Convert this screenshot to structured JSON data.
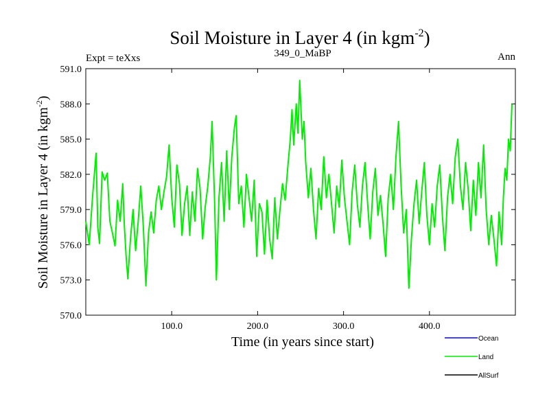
{
  "chart_data": {
    "type": "line",
    "title_main": "Soil Moisture in Layer 4 (in kgm",
    "title_sup": "-2",
    "title_end": ")",
    "subtitle_left": "Expt = teXxs",
    "subtitle_center": "349_0_MaBP",
    "subtitle_right": "Ann",
    "xlabel": "Time (in years since start)",
    "ylabel_main": "Soil Moisture in Layer 4 (in kgm",
    "ylabel_sup": "-2",
    "ylabel_end": ")",
    "xlim": [
      0,
      500
    ],
    "ylim": [
      570,
      591
    ],
    "x_ticks": [
      100,
      200,
      300,
      400
    ],
    "x_tick_labels": [
      "100.0",
      "200.0",
      "300.0",
      "400.0"
    ],
    "y_ticks": [
      570,
      573,
      576,
      579,
      582,
      585,
      588,
      591
    ],
    "y_tick_labels": [
      "570.0",
      "573.0",
      "576.0",
      "579.0",
      "582.0",
      "585.0",
      "588.0",
      "591.0"
    ],
    "legend": [
      {
        "name": "Ocean",
        "color": "#0000ff"
      },
      {
        "name": "Land",
        "color": "#00ee00"
      },
      {
        "name": "AllSurf",
        "color": "#000000"
      }
    ],
    "series": [
      {
        "name": "Land",
        "color": "#00ee00",
        "points": [
          [
            0,
            578.0
          ],
          [
            4,
            576.0
          ],
          [
            8,
            580.2
          ],
          [
            12,
            583.8
          ],
          [
            14,
            577.5
          ],
          [
            16,
            576.1
          ],
          [
            19,
            582.2
          ],
          [
            22,
            581.5
          ],
          [
            25,
            582.1
          ],
          [
            28,
            578.0
          ],
          [
            31,
            577.0
          ],
          [
            34,
            575.9
          ],
          [
            37,
            579.8
          ],
          [
            40,
            578.0
          ],
          [
            43,
            581.2
          ],
          [
            45,
            577.5
          ],
          [
            47,
            575.0
          ],
          [
            49,
            573.1
          ],
          [
            52,
            576.5
          ],
          [
            55,
            579.0
          ],
          [
            58,
            575.5
          ],
          [
            61,
            578.0
          ],
          [
            64,
            581.0
          ],
          [
            67,
            577.5
          ],
          [
            70,
            572.5
          ],
          [
            73,
            577.0
          ],
          [
            76,
            578.8
          ],
          [
            79,
            577.0
          ],
          [
            82,
            579.8
          ],
          [
            85,
            581.0
          ],
          [
            88,
            579.0
          ],
          [
            91,
            580.5
          ],
          [
            94,
            581.8
          ],
          [
            97,
            584.5
          ],
          [
            100,
            580.0
          ],
          [
            103,
            577.5
          ],
          [
            106,
            582.8
          ],
          [
            109,
            581.2
          ],
          [
            112,
            576.8
          ],
          [
            115,
            579.5
          ],
          [
            118,
            581.0
          ],
          [
            121,
            576.8
          ],
          [
            124,
            580.5
          ],
          [
            127,
            578.0
          ],
          [
            130,
            582.5
          ],
          [
            133,
            580.8
          ],
          [
            136,
            576.5
          ],
          [
            139,
            579.2
          ],
          [
            142,
            581.0
          ],
          [
            145,
            583.5
          ],
          [
            147,
            586.5
          ],
          [
            150,
            579.5
          ],
          [
            152,
            573.0
          ],
          [
            155,
            580.0
          ],
          [
            158,
            583.0
          ],
          [
            161,
            578.0
          ],
          [
            164,
            584.0
          ],
          [
            167,
            579.0
          ],
          [
            170,
            583.5
          ],
          [
            173,
            586.0
          ],
          [
            175,
            587.0
          ],
          [
            178,
            579.5
          ],
          [
            181,
            581.0
          ],
          [
            184,
            577.5
          ],
          [
            187,
            582.0
          ],
          [
            190,
            580.0
          ],
          [
            193,
            578.0
          ],
          [
            196,
            581.5
          ],
          [
            199,
            575.0
          ],
          [
            202,
            579.5
          ],
          [
            205,
            578.8
          ],
          [
            208,
            575.2
          ],
          [
            211,
            579.8
          ],
          [
            214,
            576.5
          ],
          [
            217,
            574.8
          ],
          [
            220,
            580.0
          ],
          [
            223,
            576.5
          ],
          [
            226,
            579.0
          ],
          [
            229,
            581.2
          ],
          [
            232,
            579.8
          ],
          [
            235,
            582.5
          ],
          [
            238,
            585.0
          ],
          [
            240,
            587.5
          ],
          [
            242,
            584.5
          ],
          [
            245,
            588.0
          ],
          [
            247,
            585.5
          ],
          [
            249,
            590.0
          ],
          [
            252,
            585.0
          ],
          [
            254,
            586.5
          ],
          [
            256,
            583.0
          ],
          [
            259,
            580.0
          ],
          [
            262,
            582.5
          ],
          [
            265,
            579.0
          ],
          [
            268,
            576.5
          ],
          [
            271,
            580.8
          ],
          [
            274,
            579.0
          ],
          [
            277,
            583.5
          ],
          [
            280,
            580.0
          ],
          [
            283,
            582.0
          ],
          [
            286,
            579.5
          ],
          [
            289,
            577.0
          ],
          [
            292,
            581.0
          ],
          [
            295,
            579.2
          ],
          [
            298,
            583.2
          ],
          [
            301,
            580.0
          ],
          [
            304,
            578.0
          ],
          [
            307,
            576.0
          ],
          [
            310,
            580.5
          ],
          [
            313,
            582.8
          ],
          [
            316,
            579.5
          ],
          [
            319,
            577.5
          ],
          [
            322,
            581.0
          ],
          [
            325,
            583.0
          ],
          [
            328,
            579.5
          ],
          [
            331,
            576.5
          ],
          [
            334,
            580.5
          ],
          [
            337,
            582.5
          ],
          [
            340,
            578.5
          ],
          [
            343,
            580.2
          ],
          [
            346,
            577.8
          ],
          [
            349,
            575.0
          ],
          [
            352,
            580.0
          ],
          [
            355,
            582.0
          ],
          [
            358,
            579.0
          ],
          [
            361,
            583.5
          ],
          [
            364,
            586.5
          ],
          [
            367,
            581.0
          ],
          [
            370,
            577.0
          ],
          [
            373,
            579.0
          ],
          [
            376,
            572.3
          ],
          [
            379,
            576.5
          ],
          [
            382,
            579.5
          ],
          [
            385,
            581.5
          ],
          [
            388,
            577.8
          ],
          [
            391,
            580.5
          ],
          [
            394,
            583.0
          ],
          [
            397,
            578.5
          ],
          [
            400,
            576.0
          ],
          [
            403,
            579.5
          ],
          [
            406,
            577.5
          ],
          [
            409,
            581.0
          ],
          [
            412,
            582.8
          ],
          [
            415,
            578.5
          ],
          [
            418,
            575.5
          ],
          [
            421,
            580.0
          ],
          [
            424,
            582.0
          ],
          [
            427,
            579.5
          ],
          [
            430,
            583.5
          ],
          [
            433,
            585.0
          ],
          [
            436,
            581.0
          ],
          [
            439,
            579.0
          ],
          [
            442,
            583.0
          ],
          [
            445,
            580.8
          ],
          [
            448,
            577.2
          ],
          [
            451,
            581.5
          ],
          [
            454,
            578.5
          ],
          [
            457,
            583.0
          ],
          [
            460,
            580.0
          ],
          [
            463,
            584.5
          ],
          [
            466,
            579.0
          ],
          [
            469,
            576.0
          ],
          [
            472,
            578.5
          ],
          [
            475,
            576.5
          ],
          [
            478,
            574.2
          ],
          [
            481,
            578.8
          ],
          [
            484,
            576.0
          ],
          [
            486,
            580.0
          ],
          [
            488,
            582.5
          ],
          [
            490,
            581.5
          ],
          [
            492,
            585.0
          ],
          [
            494,
            584.0
          ],
          [
            496,
            588.0
          ]
        ]
      }
    ]
  }
}
